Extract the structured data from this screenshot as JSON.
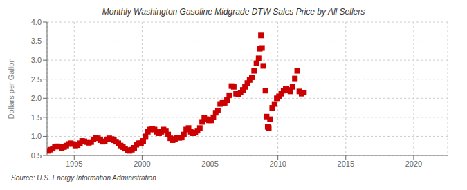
{
  "chart_data": {
    "type": "scatter",
    "title": "Monthly Washington Gasoline Midgrade DTW Sales Price by All Sellers",
    "y_label": "Dollars per Gallon",
    "annotations": [
      "Source: U.S. Energy Information Administration"
    ],
    "color": "#cc0000",
    "marker": "square",
    "grid": true,
    "xlim": [
      1993.0,
      2022.5
    ],
    "ylim": [
      0.5,
      4.0
    ],
    "xticks": [
      1995,
      2000,
      2005,
      2010,
      2015,
      2020
    ],
    "yticks": [
      0.5,
      {
        "value": 1.0,
        "label": "1.0"
      },
      1.5,
      {
        "value": 2.0,
        "label": "2.0"
      },
      2.5,
      {
        "value": 3.0,
        "label": "3.0"
      },
      3.5,
      {
        "value": 4.0,
        "label": "4.0"
      }
    ],
    "x": [
      1993.08,
      1993.25,
      1993.42,
      1993.58,
      1993.75,
      1993.92,
      1994.08,
      1994.25,
      1994.42,
      1994.58,
      1994.75,
      1994.92,
      1995.08,
      1995.25,
      1995.42,
      1995.58,
      1995.75,
      1995.92,
      1996.08,
      1996.25,
      1996.42,
      1996.58,
      1996.75,
      1996.92,
      1997.08,
      1997.25,
      1997.42,
      1997.58,
      1997.75,
      1997.92,
      1998.08,
      1998.25,
      1998.42,
      1998.58,
      1998.75,
      1998.92,
      1999.08,
      1999.25,
      1999.42,
      1999.58,
      1999.75,
      1999.92,
      2000.08,
      2000.25,
      2000.42,
      2000.58,
      2000.75,
      2000.92,
      2001.08,
      2001.25,
      2001.42,
      2001.58,
      2001.75,
      2001.92,
      2002.08,
      2002.25,
      2002.42,
      2002.58,
      2002.75,
      2002.92,
      2003.08,
      2003.25,
      2003.42,
      2003.58,
      2003.75,
      2003.92,
      2004.08,
      2004.25,
      2004.42,
      2004.58,
      2004.75,
      2004.92,
      2005.08,
      2005.25,
      2005.42,
      2005.58,
      2005.75,
      2005.92,
      2006.08,
      2006.25,
      2006.42,
      2006.58,
      2006.75,
      2006.92,
      2007.08,
      2007.25,
      2007.42,
      2007.58,
      2007.75,
      2007.92,
      2008.08,
      2008.25,
      2008.42,
      2008.58,
      2008.67,
      2008.75,
      2008.83,
      2008.92,
      2009.08,
      2009.17,
      2009.25,
      2009.33,
      2009.42,
      2009.58,
      2009.75,
      2009.92,
      2010.08,
      2010.25,
      2010.42,
      2010.58,
      2010.75,
      2010.92,
      2011.08,
      2011.25,
      2011.42,
      2011.58,
      2011.75,
      2011.92
    ],
    "values": [
      0.62,
      0.65,
      0.68,
      0.73,
      0.74,
      0.73,
      0.7,
      0.72,
      0.76,
      0.8,
      0.82,
      0.8,
      0.76,
      0.77,
      0.82,
      0.88,
      0.87,
      0.85,
      0.83,
      0.85,
      0.92,
      0.97,
      0.95,
      0.9,
      0.86,
      0.87,
      0.92,
      0.95,
      0.93,
      0.9,
      0.86,
      0.82,
      0.76,
      0.72,
      0.68,
      0.64,
      0.62,
      0.65,
      0.7,
      0.78,
      0.82,
      0.82,
      0.88,
      1.0,
      1.12,
      1.18,
      1.2,
      1.18,
      1.12,
      1.08,
      1.12,
      1.18,
      1.15,
      1.05,
      0.95,
      0.9,
      0.93,
      0.97,
      0.96,
      0.97,
      1.05,
      1.18,
      1.22,
      1.12,
      1.08,
      1.1,
      1.15,
      1.22,
      1.38,
      1.48,
      1.45,
      1.42,
      1.42,
      1.5,
      1.62,
      1.68,
      1.85,
      1.88,
      1.88,
      1.95,
      2.08,
      2.32,
      2.3,
      2.12,
      2.1,
      2.15,
      2.22,
      2.3,
      2.4,
      2.48,
      2.55,
      2.72,
      2.92,
      3.05,
      3.3,
      3.65,
      3.32,
      2.85,
      2.2,
      1.52,
      1.25,
      1.22,
      1.45,
      1.75,
      1.85,
      2.0,
      2.05,
      2.12,
      2.2,
      2.25,
      2.22,
      2.18,
      2.3,
      2.52,
      2.72,
      2.18,
      2.12,
      2.15
    ]
  }
}
